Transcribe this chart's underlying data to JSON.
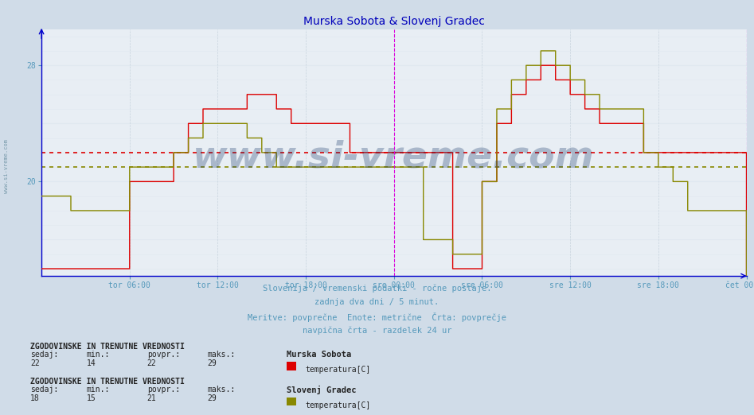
{
  "title": "Murska Sobota & Slovenj Gradec",
  "bg_color": "#d0dce8",
  "plot_bg_color": "#e8eef4",
  "grid_color": "#ffffff",
  "grid_minor_color": "#d8e0e8",
  "line1_color": "#dd0000",
  "line2_color": "#888800",
  "avg1_color": "#dd0000",
  "avg2_color": "#888800",
  "avg1_value": 22.0,
  "avg2_value": 21.0,
  "ymin": 13.5,
  "ymax": 30.5,
  "ytick_positions": [
    20,
    24,
    28
  ],
  "ytick_labels": [
    "20",
    "",
    "28"
  ],
  "title_color": "#0000bb",
  "title_fontsize": 10,
  "subtitle_lines": [
    "Slovenija / vremenski podatki - ročne postaje.",
    "zadnja dva dni / 5 minut.",
    "Meritve: povprečne  Enote: metrične  Črta: povprečje",
    "navpična črta - razdelek 24 ur"
  ],
  "subtitle_color": "#5599bb",
  "subtitle_fontsize": 7.5,
  "xtick_labels": [
    "tor 06:00",
    "tor 12:00",
    "tor 18:00",
    "sre 00:00",
    "sre 06:00",
    "sre 12:00",
    "sre 18:00",
    "čet 00:00"
  ],
  "xtick_positions": [
    72,
    144,
    216,
    288,
    360,
    432,
    504,
    576
  ],
  "total_points": 577,
  "vline_positions": [
    288,
    576
  ],
  "vline_color": "#dd00dd",
  "station1_name": "Murska Sobota",
  "station2_name": "Slovenj Gradec",
  "legend1_color": "#dd0000",
  "legend2_color": "#888800",
  "stat1_sedaj": 22,
  "stat1_min": 14,
  "stat1_povpr": 22,
  "stat1_maks": 29,
  "stat2_sedaj": 18,
  "stat2_min": 15,
  "stat2_povpr": 21,
  "stat2_maks": 29,
  "watermark": "www.si-vreme.com",
  "watermark_color": "#1a3a6a",
  "watermark_alpha": 0.3,
  "axis_color": "#0000cc",
  "tick_color": "#5599bb",
  "tick_fontsize": 7,
  "left_label": "www.si-vreme.com"
}
